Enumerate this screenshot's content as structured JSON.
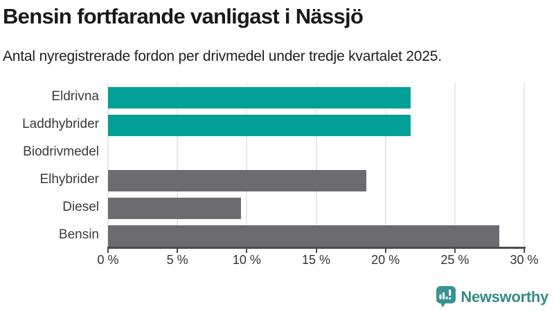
{
  "chart_data": {
    "type": "bar",
    "orientation": "horizontal",
    "title": "Bensin fortfarande vanligast i Nässjö",
    "subtitle": "Antal nyregistrerade fordon per drivmedel under tredje kvartalet 2025.",
    "categories": [
      "Eldrivna",
      "Laddhybrider",
      "Biodrivmedel",
      "Elhybrider",
      "Diesel",
      "Bensin"
    ],
    "values": [
      21.8,
      21.8,
      0,
      18.6,
      9.6,
      28.2
    ],
    "unit": "%",
    "xlabel": "",
    "ylabel": "",
    "xlim": [
      0,
      30
    ],
    "x_ticks": [
      0,
      5,
      10,
      15,
      20,
      25,
      30
    ],
    "x_tick_labels": [
      "0 %",
      "5 %",
      "10 %",
      "15 %",
      "20 %",
      "25 %",
      "30 %"
    ],
    "colors": [
      "#00a096",
      "#00a096",
      "#6b6b70",
      "#6b6b70",
      "#6b6b70",
      "#6b6b70"
    ],
    "palette": {
      "highlight": "#00a096",
      "default": "#6b6b70",
      "gridline": "#e8e8e8",
      "axis": "#4a4a4e"
    },
    "grid": true,
    "legend": false
  },
  "branding": {
    "logo_text": "Newsworthy",
    "brand_color": "#358a88"
  }
}
